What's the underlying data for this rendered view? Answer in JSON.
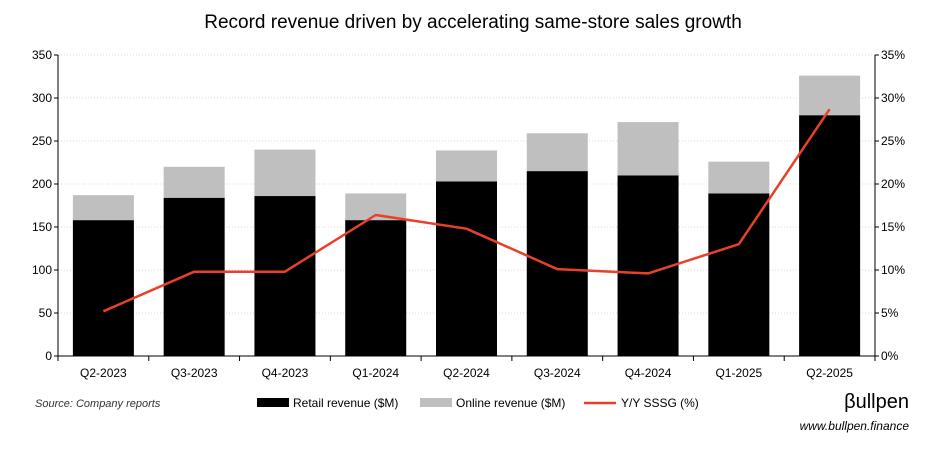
{
  "chart_data": {
    "type": "bar",
    "title": "Record revenue driven by accelerating same-store sales growth",
    "categories": [
      "Q2-2023",
      "Q3-2023",
      "Q4-2023",
      "Q1-2024",
      "Q2-2024",
      "Q3-2024",
      "Q4-2024",
      "Q1-2025",
      "Q2-2025"
    ],
    "series": [
      {
        "name": "Retail revenue ($M)",
        "kind": "bar",
        "color": "#000000",
        "values": [
          158,
          184,
          186,
          158,
          203,
          215,
          210,
          189,
          280
        ]
      },
      {
        "name": "Online revenue ($M)",
        "kind": "bar",
        "color": "#bfbfbf",
        "values": [
          29,
          36,
          54,
          31,
          36,
          44,
          62,
          37,
          46
        ]
      },
      {
        "name": "Y/Y SSSG (%)",
        "kind": "line",
        "axis": "right",
        "color": "#e8412a",
        "values": [
          5.2,
          9.8,
          9.8,
          16.4,
          14.8,
          10.1,
          9.6,
          13.0,
          28.7
        ]
      }
    ],
    "y_left": {
      "lim": [
        0,
        350
      ],
      "ticks": [
        "0",
        "50",
        "100",
        "150",
        "200",
        "250",
        "300",
        "350"
      ]
    },
    "y_right": {
      "lim": [
        0,
        35
      ],
      "ticks": [
        "0%",
        "5%",
        "10%",
        "15%",
        "20%",
        "25%",
        "30%",
        "35%"
      ]
    },
    "grid": true,
    "legend": [
      "Retail revenue ($M)",
      "Online revenue ($M)",
      "Y/Y SSSG (%)"
    ],
    "legend_position": "bottom",
    "source": "Source: Company reports",
    "brand": "βullpen",
    "url": "www.bullpen.finance"
  }
}
